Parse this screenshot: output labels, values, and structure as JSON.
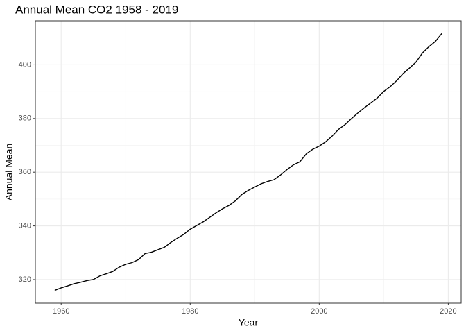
{
  "chart_data": {
    "type": "line",
    "title": "Annual Mean CO2 1958 - 2019",
    "x_label": "Year",
    "y_label": "Annual Mean",
    "x": [
      1959,
      1960,
      1961,
      1962,
      1963,
      1964,
      1965,
      1966,
      1967,
      1968,
      1969,
      1970,
      1971,
      1972,
      1973,
      1974,
      1975,
      1976,
      1977,
      1978,
      1979,
      1980,
      1981,
      1982,
      1983,
      1984,
      1985,
      1986,
      1987,
      1988,
      1989,
      1990,
      1991,
      1992,
      1993,
      1994,
      1995,
      1996,
      1997,
      1998,
      1999,
      2000,
      2001,
      2002,
      2003,
      2004,
      2005,
      2006,
      2007,
      2008,
      2009,
      2010,
      2011,
      2012,
      2013,
      2014,
      2015,
      2016,
      2017,
      2018,
      2019
    ],
    "values": [
      315.97,
      316.91,
      317.64,
      318.45,
      318.99,
      319.62,
      320.04,
      321.38,
      322.16,
      323.04,
      324.62,
      325.68,
      326.32,
      327.45,
      329.68,
      330.19,
      331.12,
      332.03,
      333.84,
      335.41,
      336.84,
      338.76,
      340.12,
      341.48,
      343.15,
      344.85,
      346.35,
      347.61,
      349.31,
      351.69,
      353.2,
      354.45,
      355.7,
      356.54,
      357.21,
      358.96,
      360.97,
      362.74,
      363.88,
      366.84,
      368.54,
      369.71,
      371.32,
      373.45,
      375.98,
      377.7,
      379.98,
      382.09,
      384.02,
      385.83,
      387.64,
      390.1,
      391.85,
      394.06,
      396.74,
      398.81,
      401.01,
      404.41,
      406.76,
      408.72,
      411.66
    ],
    "color": "#000000",
    "xlim": [
      1956,
      2022
    ],
    "ylim": [
      311.2,
      416.4
    ],
    "xticks": [
      1960,
      1980,
      2000,
      2020
    ],
    "yticks": [
      320,
      340,
      360,
      380,
      400
    ],
    "grid": true,
    "minor_grid": true
  }
}
